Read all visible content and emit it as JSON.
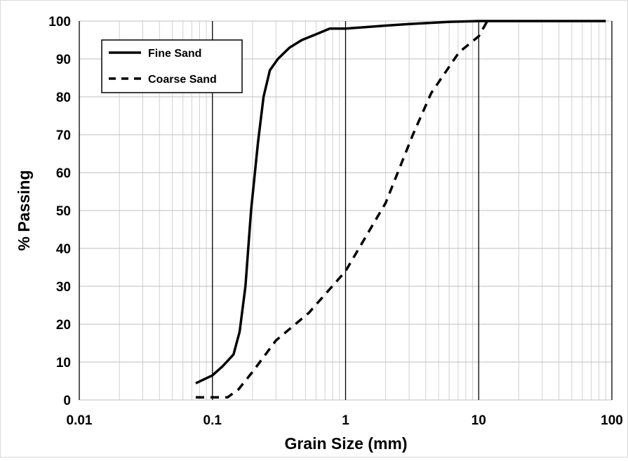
{
  "chart_data": {
    "type": "line",
    "xlabel": "Grain Size (mm)",
    "ylabel": "% Passing",
    "xscale": "log",
    "xlim": [
      0.01,
      100
    ],
    "xticks": [
      0.01,
      0.1,
      1,
      10,
      100
    ],
    "ylim": [
      0,
      100
    ],
    "yticks": [
      0,
      10,
      20,
      30,
      40,
      50,
      60,
      70,
      80,
      90,
      100
    ],
    "grid": true,
    "minor_grid": true,
    "legend": "upper left",
    "series": [
      {
        "name": "Fine Sand",
        "color": "#000000",
        "style": "solid",
        "x": [
          0.075,
          0.1,
          0.12,
          0.144,
          0.16,
          0.177,
          0.195,
          0.22,
          0.242,
          0.27,
          0.31,
          0.38,
          0.47,
          0.6,
          0.76,
          1,
          2,
          3,
          6,
          10,
          90
        ],
        "values": [
          4.4,
          6.5,
          9,
          12,
          18,
          30,
          50,
          68,
          80,
          87,
          90,
          93,
          95,
          96.5,
          98,
          98,
          98.8,
          99.2,
          99.8,
          100,
          100
        ]
      },
      {
        "name": "Coarse Sand",
        "color": "#000000",
        "style": "dashed",
        "x": [
          0.075,
          0.1,
          0.13,
          0.157,
          0.2,
          0.3,
          0.53,
          1,
          2,
          3.2,
          4.4,
          7.1,
          10,
          11.6
        ],
        "values": [
          0.7,
          0.7,
          0.7,
          2.8,
          7.4,
          15.7,
          23,
          34,
          52,
          70,
          81,
          91.7,
          96,
          100
        ]
      }
    ]
  }
}
